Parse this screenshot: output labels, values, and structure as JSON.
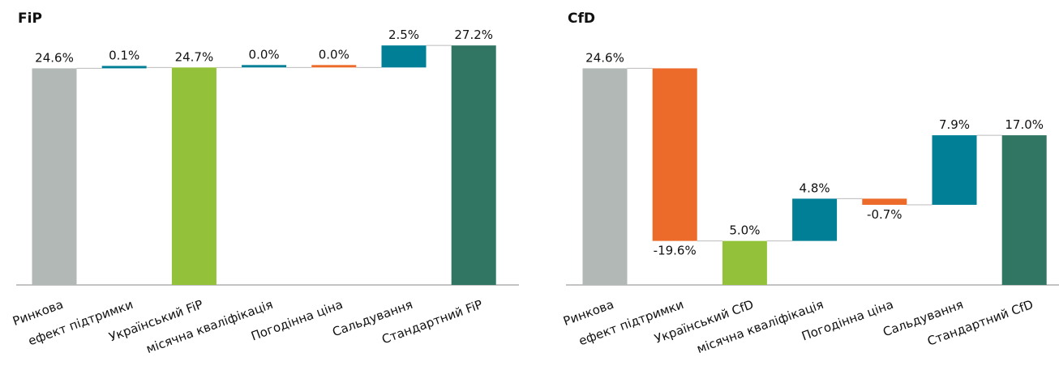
{
  "chart_data": [
    {
      "type": "waterfall",
      "title": "FiP",
      "categories": [
        "Ринкова",
        "ефект підтримки",
        "Український FiP",
        "місячна кваліфікація",
        "Погодінна ціна",
        "Сальдування",
        "Стандартний FiP"
      ],
      "values": [
        24.6,
        0.1,
        24.7,
        0.0,
        0.0,
        2.5,
        27.2
      ],
      "value_labels": [
        "24.6%",
        "0.1%",
        "24.7%",
        "0.0%",
        "0.0%",
        "2.5%",
        "27.2%"
      ],
      "measure": [
        "absolute",
        "relative",
        "absolute",
        "relative",
        "relative",
        "relative",
        "absolute"
      ],
      "colors": [
        "#b2b8b5",
        "#007f96",
        "#93c13a",
        "#007f96",
        "#ec6a2a",
        "#007f96",
        "#317662"
      ],
      "ylim": [
        0,
        28.5
      ]
    },
    {
      "type": "waterfall",
      "title": "CfD",
      "categories": [
        "Ринкова",
        "ефект підтримки",
        "Український CfD",
        "місячна кваліфікація",
        "Погодінна ціна",
        "Сальдування",
        "Стандартний CfD"
      ],
      "values": [
        24.6,
        -19.6,
        5.0,
        4.8,
        -0.7,
        7.9,
        17.0
      ],
      "value_labels": [
        "24.6%",
        "-19.6%",
        "5.0%",
        "4.8%",
        "-0.7%",
        "7.9%",
        "17.0%"
      ],
      "measure": [
        "absolute",
        "relative",
        "absolute",
        "relative",
        "relative",
        "relative",
        "absolute"
      ],
      "colors": [
        "#b2b8b5",
        "#ec6a2a",
        "#93c13a",
        "#007f96",
        "#ec6a2a",
        "#007f96",
        "#317662"
      ],
      "ylim": [
        0,
        28.5
      ]
    }
  ]
}
